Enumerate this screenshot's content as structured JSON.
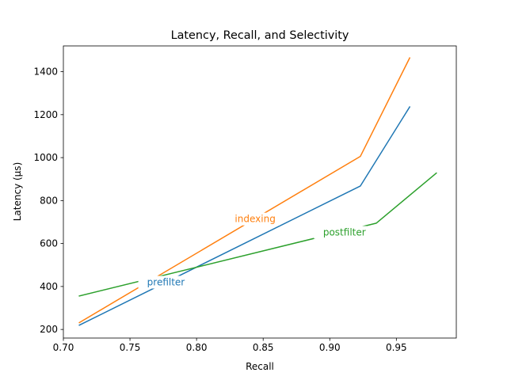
{
  "chart_data": {
    "type": "line",
    "title": "Latency, Recall, and Selectivity",
    "xlabel": "Recall",
    "ylabel": "Latency (µs)",
    "xlim": [
      0.7,
      0.995
    ],
    "ylim": [
      160,
      1520
    ],
    "xticks": [
      0.7,
      0.75,
      0.8,
      0.85,
      0.9,
      0.95
    ],
    "xtick_labels": [
      "0.70",
      "0.75",
      "0.80",
      "0.85",
      "0.90",
      "0.95"
    ],
    "yticks": [
      200,
      400,
      600,
      800,
      1000,
      1200,
      1400
    ],
    "ytick_labels": [
      "200",
      "400",
      "600",
      "800",
      "1000",
      "1200",
      "1400"
    ],
    "grid": false,
    "legend": "none (inline series labels)",
    "series": [
      {
        "name": "prefilter",
        "color": "#1f77b4",
        "x": [
          0.712,
          0.923,
          0.96
        ],
        "y": [
          220,
          868,
          1236
        ],
        "label_at": [
          0.777,
          420
        ]
      },
      {
        "name": "indexing",
        "color": "#ff7f0e",
        "x": [
          0.712,
          0.923,
          0.96
        ],
        "y": [
          232,
          1006,
          1464
        ],
        "label_at": [
          0.844,
          714
        ]
      },
      {
        "name": "postfilter",
        "color": "#2ca02c",
        "x": [
          0.712,
          0.935,
          0.98
        ],
        "y": [
          356,
          695,
          928
        ],
        "label_at": [
          0.911,
          652
        ]
      }
    ]
  }
}
